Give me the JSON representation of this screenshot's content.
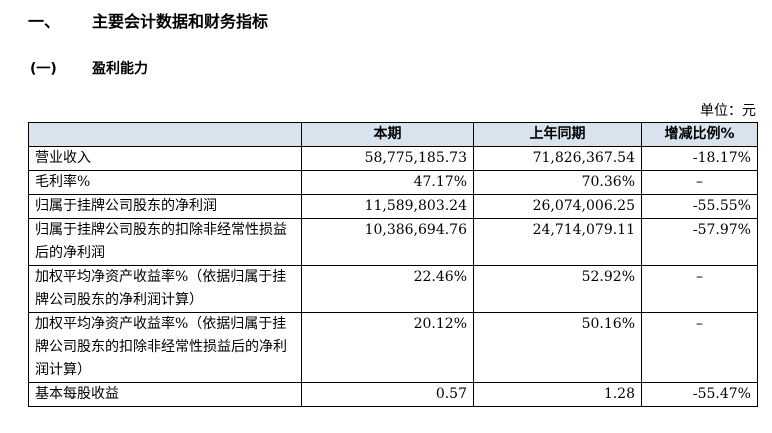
{
  "heading1": {
    "number": "一、",
    "title": "主要会计数据和财务指标"
  },
  "heading2": {
    "number": "(一)",
    "title": "盈利能力"
  },
  "unit_label": "单位：元",
  "table": {
    "headers": [
      "",
      "本期",
      "上年同期",
      "增减比例%"
    ],
    "rows": [
      {
        "label": "营业收入",
        "current": "58,775,185.73",
        "prior": "71,826,367.54",
        "change": "-18.17%"
      },
      {
        "label": "毛利率%",
        "current": "47.17%",
        "prior": "70.36%",
        "change": "–"
      },
      {
        "label": "归属于挂牌公司股东的净利润",
        "current": "11,589,803.24",
        "prior": "26,074,006.25",
        "change": "-55.55%"
      },
      {
        "label": "归属于挂牌公司股东的扣除非经常性损益后的净利润",
        "current": "10,386,694.76",
        "prior": "24,714,079.11",
        "change": "-57.97%"
      },
      {
        "label": "加权平均净资产收益率%（依据归属于挂牌公司股东的净利润计算）",
        "current": "22.46%",
        "prior": "52.92%",
        "change": "–"
      },
      {
        "label": "加权平均净资产收益率%（依据归属于挂牌公司股东的扣除非经常性损益后的净利润计算）",
        "current": "20.12%",
        "prior": "50.16%",
        "change": "–"
      },
      {
        "label": "基本每股收益",
        "current": "0.57",
        "prior": "1.28",
        "change": "-55.47%"
      }
    ]
  }
}
